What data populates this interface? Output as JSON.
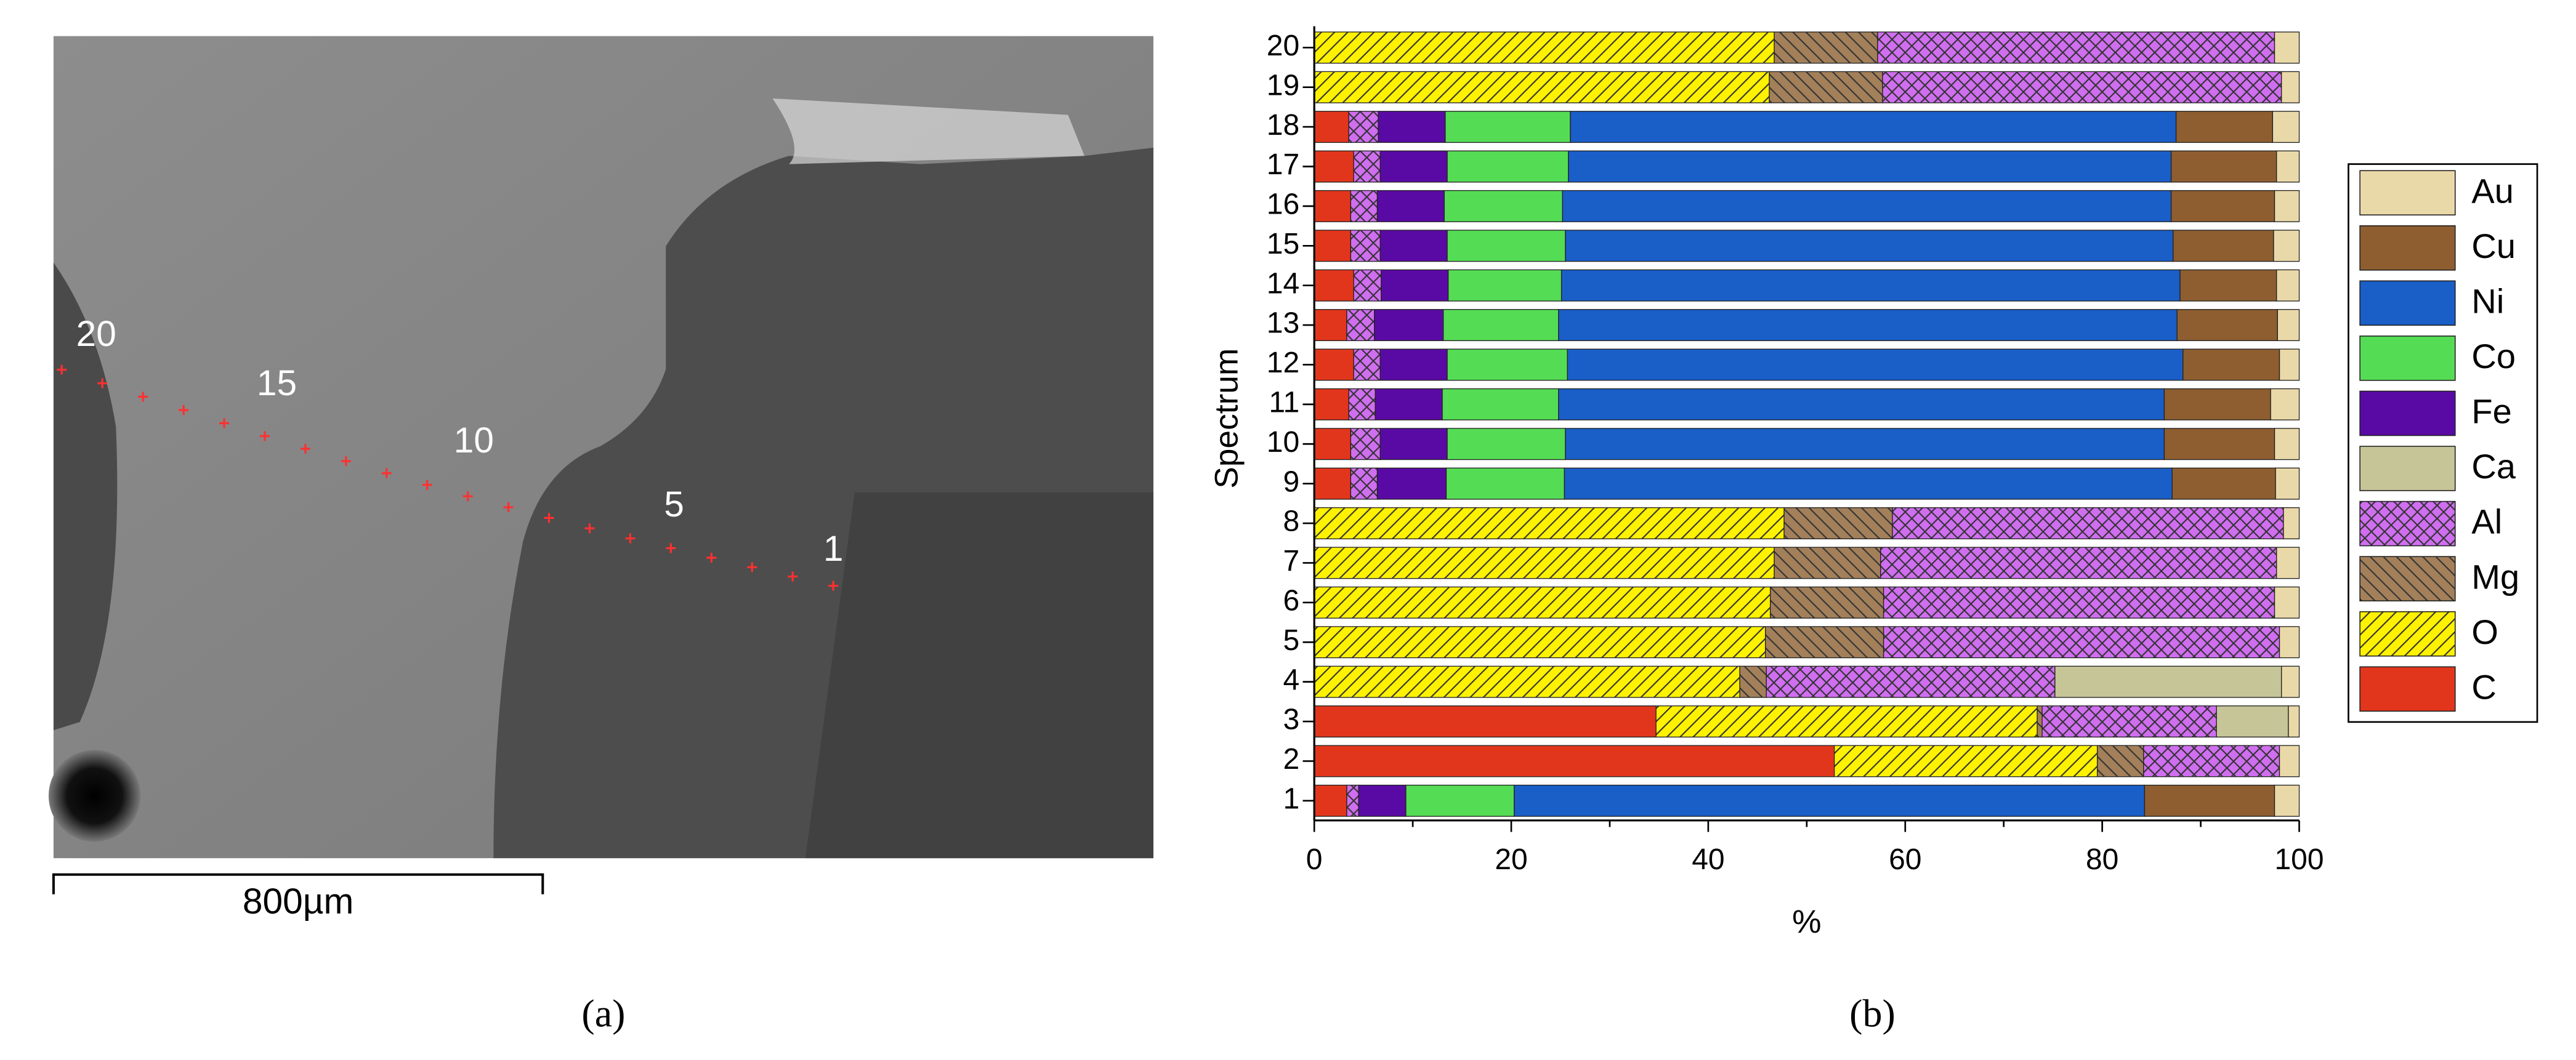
{
  "panel_a": {
    "point_labels": [
      "1",
      "5",
      "10",
      "15",
      "20"
    ],
    "scale_bar": "800µm",
    "caption": "(a)"
  },
  "panel_b_caption": "(b)",
  "chart_data": {
    "type": "bar",
    "orientation": "horizontal",
    "stacked": true,
    "xlabel": "%",
    "ylabel": "Spectrum",
    "categories": [
      "1",
      "2",
      "3",
      "4",
      "5",
      "6",
      "7",
      "8",
      "9",
      "10",
      "11",
      "12",
      "13",
      "14",
      "15",
      "16",
      "17",
      "18",
      "19",
      "20"
    ],
    "xlim": [
      0,
      100
    ],
    "xticks": [
      0,
      20,
      40,
      60,
      80,
      100
    ],
    "legend": "right",
    "series": [
      {
        "name": "C",
        "color": "#e2361c",
        "values": [
          3.3,
          52.8,
          34.7,
          0,
          0,
          0,
          0,
          0,
          3.7,
          3.7,
          3.5,
          4,
          3.3,
          4,
          3.7,
          3.7,
          4,
          3.5,
          0,
          0
        ]
      },
      {
        "name": "O",
        "color": "#fff200",
        "hatch": "/",
        "values": [
          0,
          26.7,
          38.7,
          43.2,
          45.8,
          46.3,
          46.7,
          47.7,
          0,
          0,
          0,
          0,
          0,
          0,
          0,
          0,
          0,
          0,
          46.2,
          46.7
        ]
      },
      {
        "name": "Mg",
        "color": "#a3805a",
        "hatch": "\\",
        "values": [
          0,
          4.7,
          0.5,
          2.7,
          12,
          11.5,
          10.8,
          11,
          0,
          0,
          0,
          0,
          0,
          0,
          0,
          0,
          0,
          0,
          11.5,
          10.5
        ]
      },
      {
        "name": "Al",
        "color": "#d06ef0",
        "hatch": "x",
        "values": [
          1.2,
          13.8,
          17.7,
          29.3,
          40.2,
          39.7,
          40.2,
          39.7,
          2.7,
          3,
          2.7,
          2.7,
          2.8,
          2.8,
          3,
          2.7,
          2.7,
          3,
          40.5,
          40.3
        ]
      },
      {
        "name": "Ca",
        "color": "#c6c598",
        "values": [
          0,
          0,
          7.3,
          23,
          0,
          0,
          0,
          0,
          0,
          0,
          0,
          0,
          0,
          0,
          0,
          0,
          0,
          0,
          0,
          0
        ]
      },
      {
        "name": "Fe",
        "color": "#5a0aa4",
        "values": [
          4.8,
          0,
          0,
          0,
          0,
          0,
          0,
          0,
          7,
          6.8,
          6.8,
          6.8,
          7,
          6.8,
          6.8,
          6.8,
          6.8,
          6.8,
          0,
          0
        ]
      },
      {
        "name": "Co",
        "color": "#55dc55",
        "values": [
          11,
          0,
          0,
          0,
          0,
          0,
          0,
          0,
          12,
          12,
          11.8,
          12.2,
          11.7,
          11.5,
          12,
          12,
          12.3,
          12.7,
          0,
          0
        ]
      },
      {
        "name": "Ni",
        "color": "#1a5ec8",
        "values": [
          64,
          0,
          0,
          0,
          0,
          0,
          0,
          0,
          61.7,
          60.8,
          61.5,
          62.5,
          62.8,
          62.8,
          61.7,
          61.8,
          61.2,
          61.5,
          0,
          0
        ]
      },
      {
        "name": "Cu",
        "color": "#8e5e30",
        "values": [
          13.2,
          0,
          0,
          0,
          0,
          0,
          0,
          0,
          10.5,
          11.2,
          10.8,
          9.8,
          10.2,
          9.8,
          10.2,
          10.5,
          10.7,
          9.8,
          0,
          0
        ]
      },
      {
        "name": "Au",
        "color": "#ead9a8",
        "values": [
          2.5,
          2,
          1.1,
          1.8,
          2,
          2.5,
          2.3,
          1.6,
          2.4,
          2.5,
          2.9,
          2,
          2.2,
          2.3,
          2.6,
          2.5,
          2.3,
          2.7,
          1.8,
          2.5
        ]
      }
    ]
  }
}
